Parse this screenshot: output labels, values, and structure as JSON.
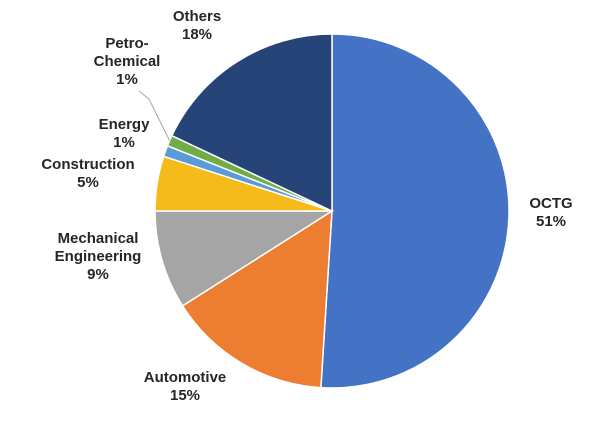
{
  "chart_data": {
    "type": "pie",
    "start_angle_deg": 0,
    "direction": "clockwise",
    "slices": [
      {
        "name_lines": [
          "OCTG"
        ],
        "value": 51,
        "value_label": "51%",
        "color": "#4472c4"
      },
      {
        "name_lines": [
          "Automotive"
        ],
        "value": 15,
        "value_label": "15%",
        "color": "#ed7d31"
      },
      {
        "name_lines": [
          "Mechanical",
          "Engineering"
        ],
        "value": 9,
        "value_label": "9%",
        "color": "#a5a5a5"
      },
      {
        "name_lines": [
          "Construction"
        ],
        "value": 5,
        "value_label": "5%",
        "color": "#f5bb1b"
      },
      {
        "name_lines": [
          "Energy"
        ],
        "value": 1,
        "value_label": "1%",
        "color": "#5b9bd5"
      },
      {
        "name_lines": [
          "Petro-",
          "Chemical"
        ],
        "value": 1,
        "value_label": "1%",
        "color": "#70ad47"
      },
      {
        "name_lines": [
          "Others"
        ],
        "value": 18,
        "value_label": "18%",
        "color": "#264478"
      }
    ]
  }
}
